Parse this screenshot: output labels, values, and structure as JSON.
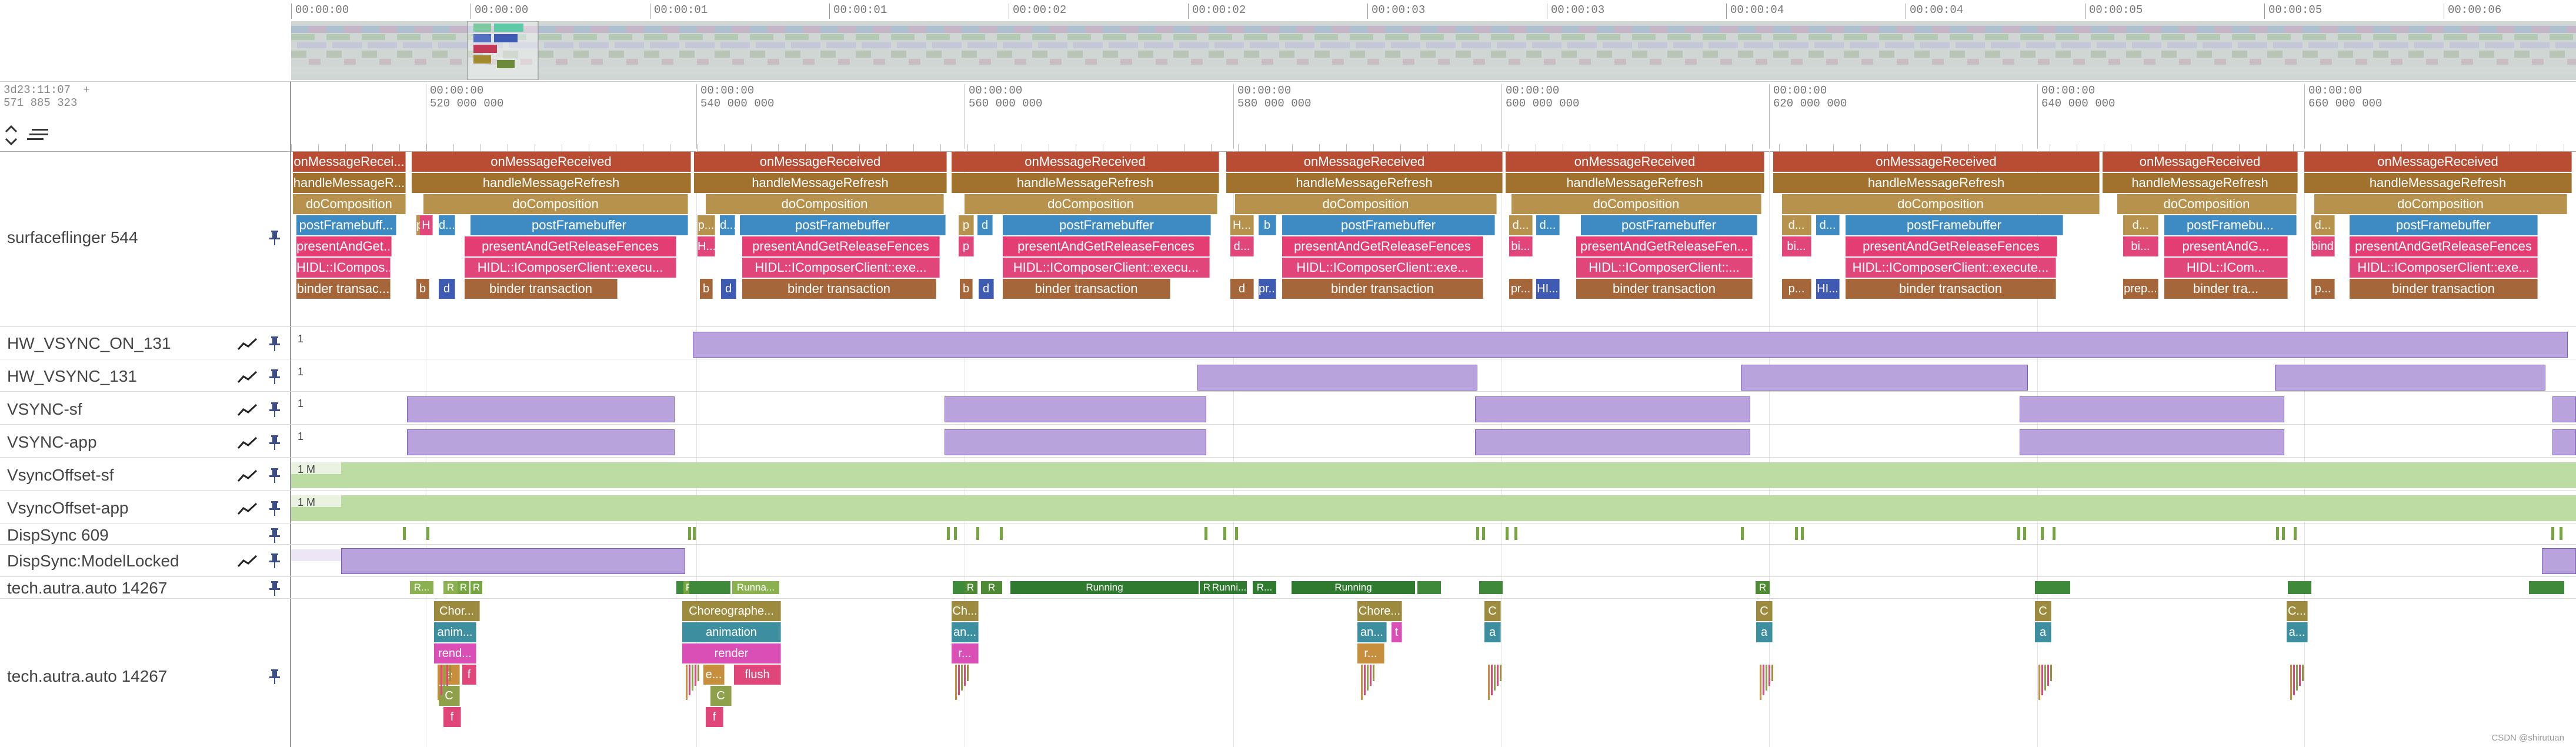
{
  "overview": {
    "ticks": [
      "00:00:00",
      "00:00:00",
      "00:00:01",
      "00:00:01",
      "00:00:02",
      "00:00:02",
      "00:00:03",
      "00:00:03",
      "00:00:04",
      "00:00:04",
      "00:00:05",
      "00:00:05",
      "00:00:06"
    ]
  },
  "ruler": {
    "timestamp_line1": "3d23:11:07",
    "timestamp_plus": "+",
    "timestamp_line2": "571 885 323",
    "ticks": [
      {
        "top": "00:00:00",
        "bottom": "520 000 000"
      },
      {
        "top": "00:00:00",
        "bottom": "540 000 000"
      },
      {
        "top": "00:00:00",
        "bottom": "560 000 000"
      },
      {
        "top": "00:00:00",
        "bottom": "580 000 000"
      },
      {
        "top": "00:00:00",
        "bottom": "600 000 000"
      },
      {
        "top": "00:00:00",
        "bottom": "620 000 000"
      },
      {
        "top": "00:00:00",
        "bottom": "640 000 000"
      },
      {
        "top": "00:00:00",
        "bottom": "660 000 000"
      }
    ]
  },
  "tracks": {
    "surfaceflinger": "surfaceflinger 544",
    "hw_vsync_on": "HW_VSYNC_ON_131",
    "hw_vsync": "HW_VSYNC_131",
    "vsync_sf": "VSYNC-sf",
    "vsync_app": "VSYNC-app",
    "vsync_offset_sf": "VsyncOffset-sf",
    "vsync_offset_app": "VsyncOffset-app",
    "dispsync": "DispSync 609",
    "dispsync_model": "DispSync:ModelLocked",
    "tech1": "tech.autra.auto 14267",
    "tech2": "tech.autra.auto 14267"
  },
  "counter_values": {
    "one": "1",
    "one_m": "1 M"
  },
  "sf_slices": {
    "row0": [
      "onMessageRecei...",
      "onMessageReceived",
      "onMessageReceived",
      "onMessageReceived",
      "onMessageReceived",
      "onMessageReceived",
      "onMessageReceived",
      "onMessageReceived",
      "onMessageReceived"
    ],
    "row1": [
      "handleMessageR...",
      "handleMessageRefresh",
      "handleMessageRefresh",
      "handleMessageRefresh",
      "handleMessageRefresh",
      "handleMessageRefresh",
      "handleMessageRefresh",
      "handleMessageRefresh",
      "handleMessageRefresh"
    ],
    "row2": [
      "doComposition",
      "doComposition",
      "doComposition",
      "doComposition",
      "doComposition",
      "doComposition",
      "doComposition",
      "doComposition",
      "doComposition"
    ],
    "row3": [
      "postFramebuff...",
      "postFramebuffer",
      "postFramebuffer",
      "postFramebuffer",
      "postFramebuffer",
      "postFramebuffer",
      "postFramebuffer",
      "postFramebu...",
      "postFramebuffer"
    ],
    "row4": [
      "presentAndGet...",
      "presentAndGetReleaseFences",
      "presentAndGetReleaseFences",
      "presentAndGetReleaseFences",
      "presentAndGetReleaseFences",
      "presentAndGetReleaseFen...",
      "presentAndGetReleaseFences",
      "presentAndG...",
      "presentAndGetReleaseFences"
    ],
    "row5": [
      "HIDL::ICompos...",
      "HIDL::IComposerClient::execu...",
      "HIDL::IComposerClient::exe...",
      "HIDL::IComposerClient::execu...",
      "HIDL::IComposerClient::exe...",
      "HIDL::IComposerClient::...",
      "HIDL::IComposerClient::execute...",
      "HIDL::ICom...",
      "HIDL::IComposerClient::exe..."
    ],
    "row6": [
      "binder transac...",
      "binder transaction",
      "binder transaction",
      "binder transaction",
      "binder transaction",
      "binder transaction",
      "binder transaction",
      "binder tra...",
      "binder transaction"
    ],
    "small": [
      "p...",
      "H",
      "d...",
      "b",
      "d",
      "p...",
      "H...",
      "d...",
      "b",
      "d",
      "p",
      "p",
      "d",
      "b",
      "d",
      "H...",
      "d...",
      "b",
      "d",
      "pr...",
      "d...",
      "bi...",
      "d...",
      "pr...",
      "HI...",
      "d...",
      "bi...",
      "d...",
      "p...",
      "HI...",
      "d...",
      "bi...",
      "d",
      "prep...",
      "HIDL...",
      "d...",
      "bind...",
      "d",
      "p...",
      "HI...",
      "d...",
      "bi...",
      "d"
    ]
  },
  "tech_states": [
    "R...",
    "R",
    "R",
    "R",
    "R",
    "Runna...",
    "R",
    "R",
    "Running",
    "R",
    "Runni...",
    "R...",
    "Running",
    "R"
  ],
  "tech_slices": {
    "col1": [
      "Chor...",
      "anim...",
      "rend...",
      "e",
      "f",
      "C",
      "f"
    ],
    "col2": [
      "Choreographe...",
      "animation",
      "render",
      "e...",
      "flush",
      "C",
      "f"
    ],
    "col3": [
      "Ch...",
      "an...",
      "r..."
    ],
    "col4": [
      "Chore...",
      "an...",
      "t",
      "r..."
    ],
    "col5": [
      "C",
      "a"
    ],
    "col6": [
      "C",
      "a"
    ],
    "col7": [
      "C",
      "a"
    ],
    "col8": [
      "C...",
      "a..."
    ]
  },
  "watermark": "CSDN @shirutuan",
  "colors": {
    "onMessage": "#b84d34",
    "handle": "#a0722e",
    "doComp": "#b6924c",
    "postFb": "#3e8bc4",
    "present": "#e43d73",
    "hidl": "#e0467a",
    "binder": "#a5673a",
    "counter_purple": "#b9a3dc",
    "counter_green": "#bcdca4"
  }
}
